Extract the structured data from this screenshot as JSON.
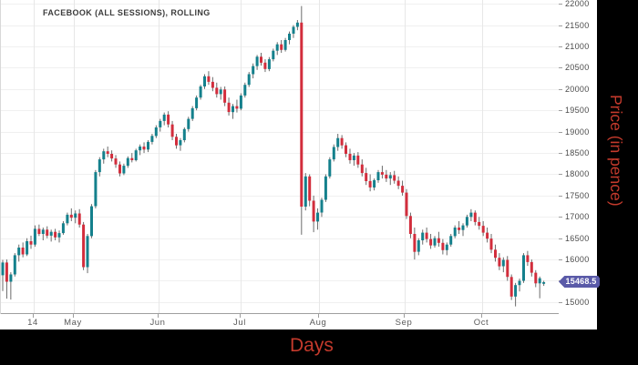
{
  "header": {
    "title": "FACEBOOK (ALL SESSIONS), ROLLING"
  },
  "axes": {
    "x_label": "Days",
    "y_label": "Price (in pence)",
    "last_price_label": "15468.5"
  },
  "colors": {
    "up": "#14808c",
    "down": "#d22d3c",
    "wick": "#6b6b6b",
    "grid_h": "#f0f0f0",
    "grid_v": "#e7e7e7",
    "axis_line": "#9e9e9e",
    "tick_text": "#4a4a4a",
    "label_red": "#c43a2c",
    "badge_bg": "#5a5aa8",
    "badge_text": "#ffffff",
    "band_bg": "#000000",
    "plot_bg": "#ffffff"
  },
  "chart_data": {
    "type": "candlestick",
    "title": "FACEBOOK (ALL SESSIONS), ROLLING",
    "xlabel": "Days",
    "ylabel": "Price (in pence)",
    "ylim": [
      14720,
      22090
    ],
    "yticks": [
      15000,
      15500,
      16000,
      16500,
      17000,
      17500,
      18000,
      18500,
      19000,
      19500,
      20000,
      20500,
      21000,
      21500,
      22000
    ],
    "xticks": [
      {
        "label": "14",
        "i": 7.67
      },
      {
        "label": "May",
        "i": 17.6
      },
      {
        "label": "Jun",
        "i": 38.6
      },
      {
        "label": "Jul",
        "i": 58.9
      },
      {
        "label": "Aug",
        "i": 78.3
      },
      {
        "label": "Sep",
        "i": 99.5
      },
      {
        "label": "Oct",
        "i": 118.7
      }
    ],
    "grid": true,
    "legend": "none",
    "last_price": 15468.5,
    "candles_format": [
      "open",
      "high",
      "low",
      "close"
    ],
    "candles": [
      [
        15630,
        15990,
        15260,
        15930
      ],
      [
        15930,
        16000,
        15080,
        15480
      ],
      [
        15480,
        15700,
        15060,
        15650
      ],
      [
        15650,
        16150,
        15600,
        16100
      ],
      [
        16100,
        16350,
        15950,
        16280
      ],
      [
        16280,
        16400,
        16050,
        16120
      ],
      [
        16120,
        16500,
        16080,
        16430
      ],
      [
        16430,
        16560,
        16250,
        16350
      ],
      [
        16350,
        16800,
        16300,
        16720
      ],
      [
        16720,
        16820,
        16550,
        16600
      ],
      [
        16600,
        16750,
        16450,
        16700
      ],
      [
        16700,
        16780,
        16500,
        16560
      ],
      [
        16560,
        16700,
        16420,
        16650
      ],
      [
        16650,
        16720,
        16450,
        16520
      ],
      [
        16520,
        16680,
        16400,
        16620
      ],
      [
        16620,
        16900,
        16580,
        16850
      ],
      [
        16850,
        17100,
        16800,
        17050
      ],
      [
        17050,
        17200,
        16900,
        16980
      ],
      [
        16980,
        17150,
        16850,
        17080
      ],
      [
        17080,
        17180,
        16750,
        16820
      ],
      [
        16820,
        16880,
        15750,
        15820
      ],
      [
        15820,
        16600,
        15680,
        16550
      ],
      [
        16550,
        17300,
        16500,
        17250
      ],
      [
        17250,
        18100,
        17200,
        18050
      ],
      [
        18050,
        18400,
        17950,
        18350
      ],
      [
        18350,
        18600,
        18250,
        18540
      ],
      [
        18540,
        18650,
        18400,
        18480
      ],
      [
        18480,
        18560,
        18300,
        18370
      ],
      [
        18370,
        18450,
        18150,
        18230
      ],
      [
        18230,
        18300,
        17950,
        18020
      ],
      [
        18020,
        18250,
        17980,
        18200
      ],
      [
        18200,
        18420,
        18150,
        18380
      ],
      [
        18380,
        18500,
        18280,
        18330
      ],
      [
        18330,
        18600,
        18300,
        18560
      ],
      [
        18560,
        18700,
        18450,
        18650
      ],
      [
        18650,
        18750,
        18500,
        18580
      ],
      [
        18580,
        18800,
        18520,
        18760
      ],
      [
        18760,
        18950,
        18700,
        18900
      ],
      [
        18900,
        19150,
        18850,
        19100
      ],
      [
        19100,
        19300,
        19000,
        19250
      ],
      [
        19250,
        19450,
        19150,
        19400
      ],
      [
        19400,
        19480,
        19100,
        19170
      ],
      [
        19170,
        19250,
        18800,
        18880
      ],
      [
        18880,
        18950,
        18600,
        18680
      ],
      [
        18680,
        18850,
        18550,
        18800
      ],
      [
        18800,
        19100,
        18750,
        19060
      ],
      [
        19060,
        19350,
        19000,
        19300
      ],
      [
        19300,
        19600,
        19250,
        19550
      ],
      [
        19550,
        19850,
        19500,
        19800
      ],
      [
        19800,
        20100,
        19750,
        20060
      ],
      [
        20060,
        20350,
        20000,
        20300
      ],
      [
        20300,
        20420,
        20100,
        20170
      ],
      [
        20170,
        20280,
        19950,
        20030
      ],
      [
        20030,
        20150,
        19800,
        19880
      ],
      [
        19880,
        20050,
        19750,
        19990
      ],
      [
        19990,
        20060,
        19600,
        19680
      ],
      [
        19680,
        19800,
        19380,
        19460
      ],
      [
        19460,
        19650,
        19300,
        19600
      ],
      [
        19600,
        19750,
        19450,
        19540
      ],
      [
        19540,
        19900,
        19500,
        19850
      ],
      [
        19850,
        20150,
        19800,
        20100
      ],
      [
        20100,
        20400,
        20050,
        20350
      ],
      [
        20350,
        20600,
        20250,
        20540
      ],
      [
        20540,
        20800,
        20450,
        20760
      ],
      [
        20760,
        20850,
        20550,
        20620
      ],
      [
        20620,
        20700,
        20400,
        20470
      ],
      [
        20470,
        20750,
        20420,
        20700
      ],
      [
        20700,
        20950,
        20650,
        20900
      ],
      [
        20900,
        21100,
        20800,
        21050
      ],
      [
        21050,
        21150,
        20850,
        20920
      ],
      [
        20920,
        21200,
        20880,
        21150
      ],
      [
        21150,
        21350,
        21050,
        21300
      ],
      [
        21300,
        21500,
        21200,
        21460
      ],
      [
        21460,
        21620,
        21380,
        21560
      ],
      [
        21560,
        21950,
        16580,
        17240
      ],
      [
        17240,
        18030,
        17150,
        17950
      ],
      [
        17950,
        18000,
        17250,
        17380
      ],
      [
        17380,
        17500,
        16640,
        16890
      ],
      [
        16890,
        17200,
        16700,
        17100
      ],
      [
        17100,
        17450,
        17000,
        17400
      ],
      [
        17400,
        18000,
        17350,
        17950
      ],
      [
        17950,
        18400,
        17900,
        18350
      ],
      [
        18350,
        18700,
        18300,
        18640
      ],
      [
        18640,
        18950,
        18550,
        18850
      ],
      [
        18850,
        18920,
        18600,
        18680
      ],
      [
        18680,
        18750,
        18400,
        18480
      ],
      [
        18480,
        18600,
        18250,
        18330
      ],
      [
        18330,
        18500,
        18200,
        18440
      ],
      [
        18440,
        18520,
        18150,
        18230
      ],
      [
        18230,
        18350,
        17950,
        18030
      ],
      [
        18030,
        18150,
        17750,
        17840
      ],
      [
        17840,
        18000,
        17600,
        17690
      ],
      [
        17690,
        17900,
        17620,
        17860
      ],
      [
        17860,
        18100,
        17800,
        18050
      ],
      [
        18050,
        18200,
        17900,
        17990
      ],
      [
        17990,
        18100,
        17820,
        17900
      ],
      [
        17900,
        18050,
        17750,
        17980
      ],
      [
        17980,
        18080,
        17780,
        17850
      ],
      [
        17850,
        17950,
        17650,
        17730
      ],
      [
        17730,
        17850,
        17500,
        17570
      ],
      [
        17570,
        17650,
        16950,
        17020
      ],
      [
        17020,
        17100,
        16500,
        16600
      ],
      [
        16600,
        16750,
        16000,
        16180
      ],
      [
        16180,
        16500,
        16100,
        16450
      ],
      [
        16450,
        16700,
        16350,
        16630
      ],
      [
        16630,
        16750,
        16400,
        16480
      ],
      [
        16480,
        16600,
        16250,
        16330
      ],
      [
        16330,
        16550,
        16280,
        16500
      ],
      [
        16500,
        16650,
        16300,
        16390
      ],
      [
        16390,
        16480,
        16120,
        16220
      ],
      [
        16220,
        16400,
        16100,
        16350
      ],
      [
        16350,
        16600,
        16300,
        16550
      ],
      [
        16550,
        16800,
        16500,
        16750
      ],
      [
        16750,
        16900,
        16600,
        16690
      ],
      [
        16690,
        16850,
        16550,
        16800
      ],
      [
        16800,
        17050,
        16750,
        17000
      ],
      [
        17000,
        17180,
        16900,
        17100
      ],
      [
        17100,
        17150,
        16800,
        16880
      ],
      [
        16880,
        17000,
        16700,
        16790
      ],
      [
        16790,
        16900,
        16550,
        16630
      ],
      [
        16630,
        16750,
        16400,
        16490
      ],
      [
        16490,
        16600,
        16150,
        16230
      ],
      [
        16230,
        16350,
        15950,
        16040
      ],
      [
        16040,
        16150,
        15750,
        15840
      ],
      [
        15840,
        16050,
        15700,
        15990
      ],
      [
        15990,
        16080,
        15500,
        15590
      ],
      [
        15590,
        15650,
        15050,
        15130
      ],
      [
        15130,
        15450,
        14900,
        15400
      ],
      [
        15400,
        15550,
        15250,
        15500
      ],
      [
        15500,
        16150,
        15450,
        16100
      ],
      [
        16100,
        16200,
        15850,
        15940
      ],
      [
        15940,
        16000,
        15600,
        15690
      ],
      [
        15690,
        15750,
        15350,
        15440
      ],
      [
        15440,
        15600,
        15090,
        15560
      ],
      [
        15430,
        15500,
        15380,
        15468.5
      ]
    ]
  }
}
